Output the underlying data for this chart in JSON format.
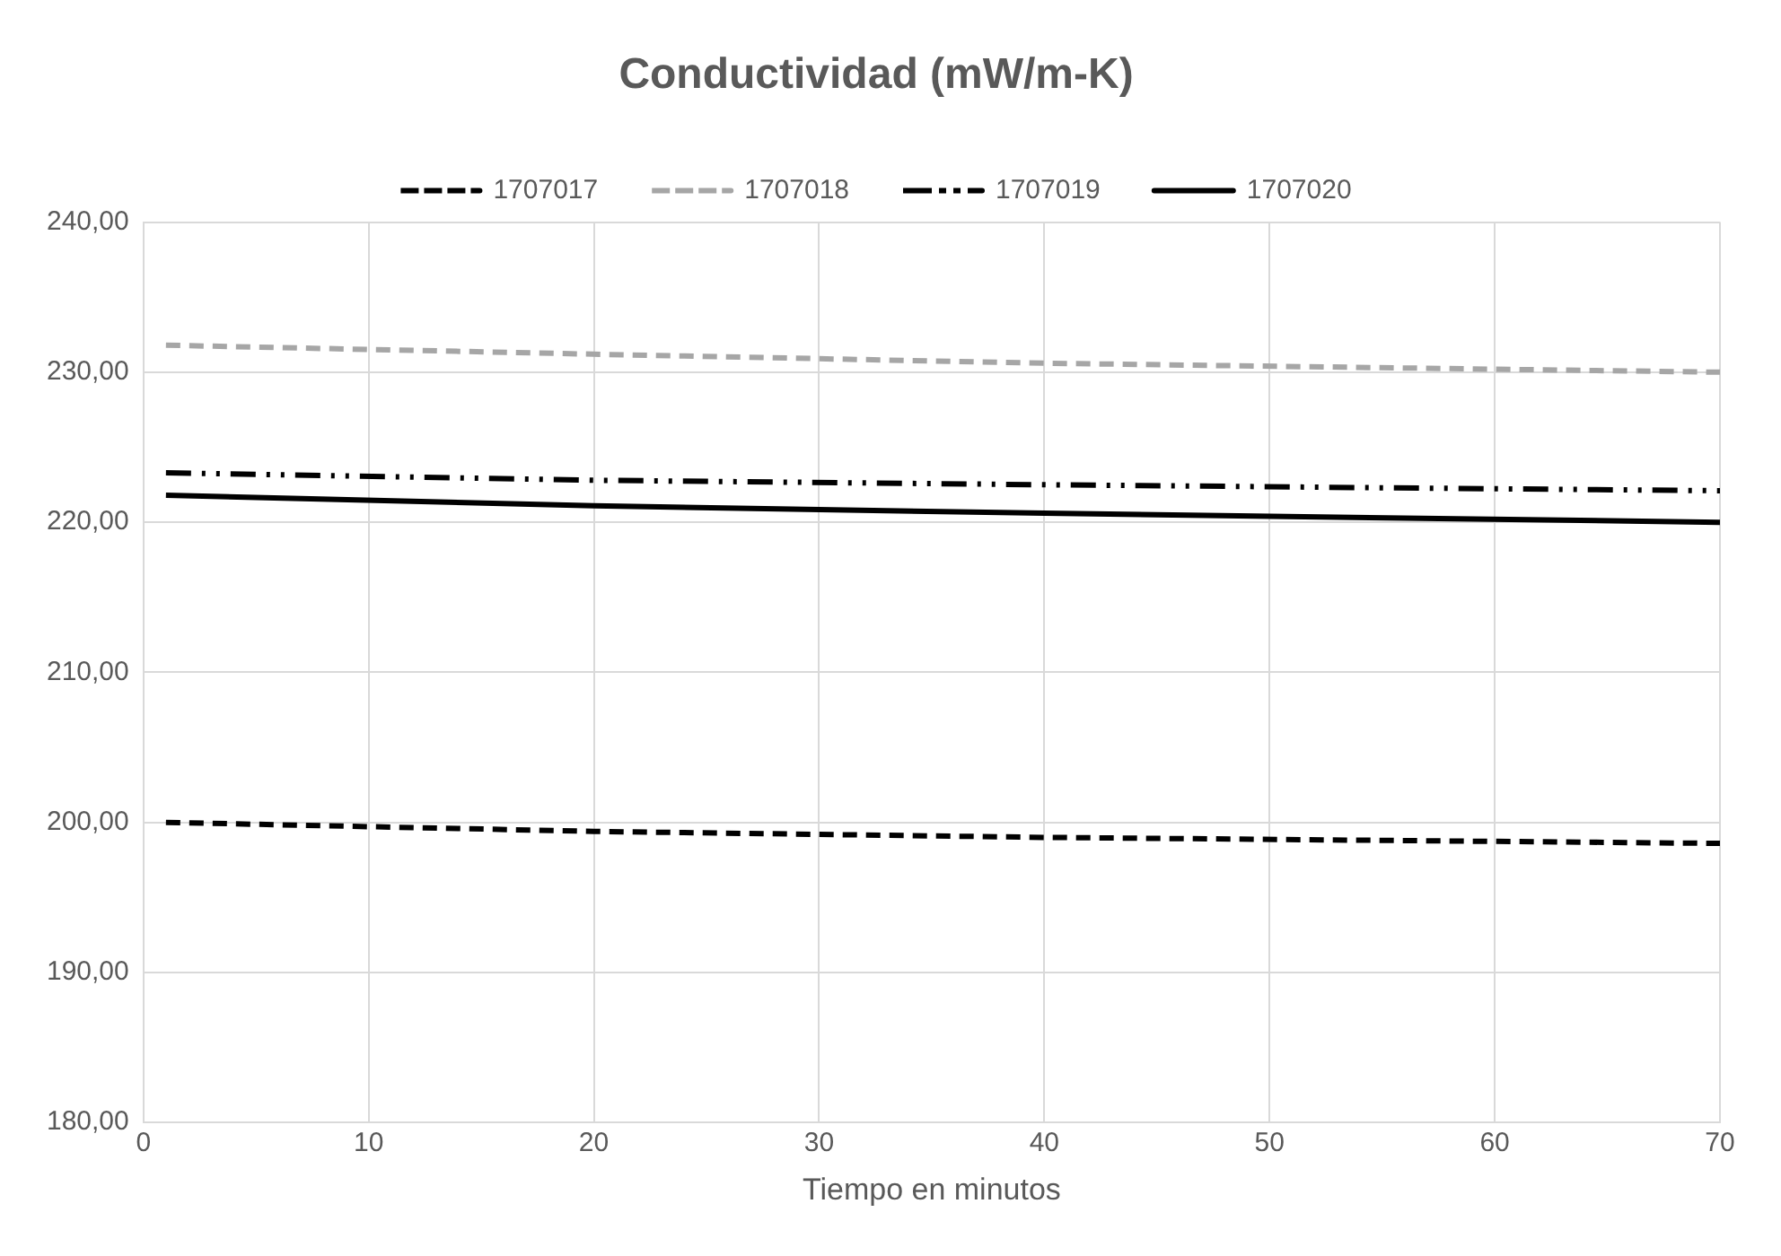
{
  "chart_data": {
    "type": "line",
    "title": "Conductividad (mW/m-K)",
    "xlabel": "Tiempo en minutos",
    "xlim": [
      0,
      70
    ],
    "xticks": [
      0,
      10,
      20,
      30,
      40,
      50,
      60,
      70
    ],
    "ylim": [
      180,
      240
    ],
    "yticks": [
      {
        "value": 180,
        "label": "180,00"
      },
      {
        "value": 190,
        "label": "190,00"
      },
      {
        "value": 200,
        "label": "200,00"
      },
      {
        "value": 210,
        "label": "210,00"
      },
      {
        "value": 220,
        "label": "220,00"
      },
      {
        "value": 230,
        "label": "230,00"
      },
      {
        "value": 240,
        "label": "240,00"
      }
    ],
    "grid": true,
    "legend": "top",
    "marker": "none",
    "series": [
      {
        "name": "1707017",
        "color": "#000000",
        "line_style": "dashed",
        "x": [
          1,
          20,
          40,
          70
        ],
        "values": [
          200.0,
          199.4,
          199.0,
          198.6
        ]
      },
      {
        "name": "1707018",
        "color": "#a6a6a6",
        "line_style": "dashed",
        "x": [
          1,
          20,
          40,
          70
        ],
        "values": [
          231.8,
          231.2,
          230.6,
          230.0
        ]
      },
      {
        "name": "1707019",
        "color": "#000000",
        "line_style": "dashdot",
        "x": [
          1,
          20,
          40,
          70
        ],
        "values": [
          223.3,
          222.8,
          222.5,
          222.1
        ]
      },
      {
        "name": "1707020",
        "color": "#000000",
        "line_style": "solid",
        "x": [
          1,
          20,
          40,
          70
        ],
        "values": [
          221.8,
          221.1,
          220.6,
          220.0
        ]
      }
    ]
  }
}
